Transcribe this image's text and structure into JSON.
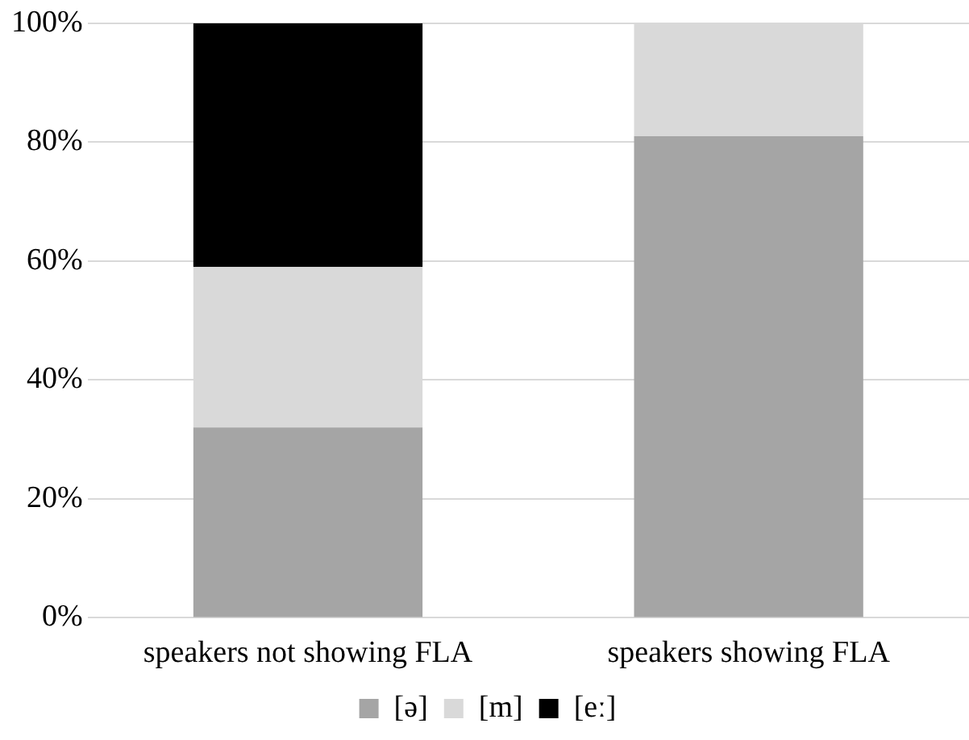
{
  "chart_data": {
    "type": "bar",
    "stacked": true,
    "categories": [
      "speakers not showing FLA",
      "speakers showing FLA"
    ],
    "series": [
      {
        "name": "[ə]",
        "color": "#a5a5a5",
        "values": [
          32,
          81
        ]
      },
      {
        "name": "[m]",
        "color": "#d9d9d9",
        "values": [
          27,
          19
        ]
      },
      {
        "name": "[eː]",
        "color": "#000000",
        "values": [
          41,
          0
        ]
      }
    ],
    "ylim": [
      0,
      100
    ],
    "yticks": [
      {
        "value": 0,
        "label": "0%"
      },
      {
        "value": 20,
        "label": "20%"
      },
      {
        "value": 40,
        "label": "40%"
      },
      {
        "value": 60,
        "label": "60%"
      },
      {
        "value": 80,
        "label": "80%"
      },
      {
        "value": 100,
        "label": "100%"
      }
    ],
    "grid": "y",
    "legend": "bottom"
  }
}
